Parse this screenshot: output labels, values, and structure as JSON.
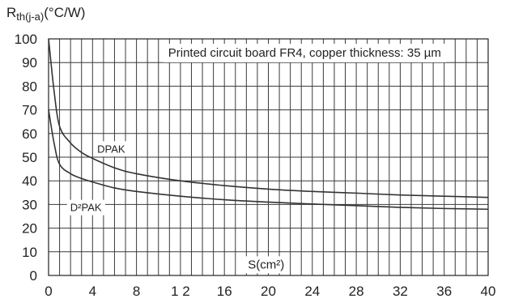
{
  "chart_data": {
    "type": "line",
    "title": "",
    "ylabel": {
      "main": "R",
      "sub": "th(j-a)",
      "unit": "(°C/W)"
    },
    "xlabel": "S(cm²)",
    "annotation": "Printed circuit board FR4, copper thickness: 35 µm",
    "xlim": [
      0,
      40
    ],
    "ylim": [
      0,
      100
    ],
    "x_major_ticks": [
      0,
      4,
      8,
      12,
      16,
      20,
      24,
      28,
      32,
      36,
      40
    ],
    "x_tick_labels": [
      "0",
      "4",
      "8",
      "1 2",
      "16",
      "20",
      "24",
      "28",
      "32",
      "36",
      "40"
    ],
    "y_major_ticks": [
      0,
      10,
      20,
      30,
      40,
      50,
      60,
      70,
      80,
      90,
      100
    ],
    "y_tick_labels": [
      "0",
      "10",
      "20",
      "30",
      "40",
      "50",
      "60",
      "70",
      "80",
      "90",
      "100"
    ],
    "grid": true,
    "grid_x_step": 1,
    "grid_y_step": 10,
    "series": [
      {
        "name": "DPAK",
        "color": "#333333",
        "x": [
          0,
          0.5,
          1,
          2,
          3,
          4,
          6,
          8,
          12,
          16,
          20,
          24,
          28,
          32,
          36,
          40
        ],
        "y": [
          100,
          78,
          63,
          56,
          52,
          49.5,
          45.5,
          43,
          40,
          38,
          36.5,
          35.5,
          34.8,
          34,
          33.5,
          33
        ]
      },
      {
        "name": "D²PAK",
        "color": "#333333",
        "x": [
          0,
          0.5,
          1,
          2,
          3,
          4,
          6,
          8,
          12,
          16,
          20,
          24,
          28,
          32,
          36,
          40
        ],
        "y": [
          70,
          56,
          47,
          43,
          41,
          39.5,
          37,
          35.5,
          33.5,
          32,
          31,
          30.2,
          29.5,
          28.8,
          28.3,
          28
        ]
      }
    ]
  }
}
